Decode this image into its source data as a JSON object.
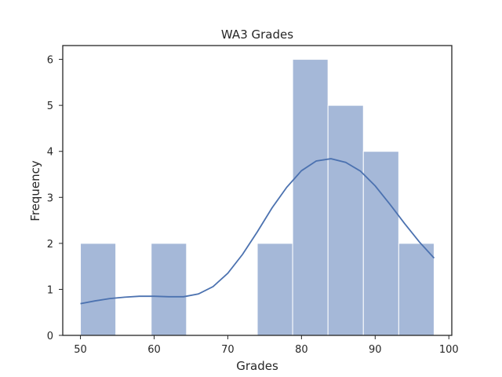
{
  "chart_data": {
    "type": "bar",
    "title": "WA3 Grades",
    "xlabel": "Grades",
    "ylabel": "Frequency",
    "xlim": [
      47.6,
      100.4
    ],
    "ylim": [
      0,
      6.3
    ],
    "xticks": [
      50,
      60,
      70,
      80,
      90,
      100
    ],
    "yticks": [
      0,
      1,
      2,
      3,
      4,
      5,
      6
    ],
    "grid": false,
    "bins": [
      {
        "x0": 50.0,
        "x1": 54.8,
        "count": 2
      },
      {
        "x0": 54.8,
        "x1": 59.6,
        "count": 0
      },
      {
        "x0": 59.6,
        "x1": 64.4,
        "count": 2
      },
      {
        "x0": 64.4,
        "x1": 69.2,
        "count": 0
      },
      {
        "x0": 69.2,
        "x1": 74.0,
        "count": 0
      },
      {
        "x0": 74.0,
        "x1": 78.8,
        "count": 2
      },
      {
        "x0": 78.8,
        "x1": 83.6,
        "count": 6
      },
      {
        "x0": 83.6,
        "x1": 88.4,
        "count": 5
      },
      {
        "x0": 88.4,
        "x1": 93.2,
        "count": 4
      },
      {
        "x0": 93.2,
        "x1": 98.0,
        "count": 2
      }
    ],
    "kde": {
      "x": [
        50,
        52,
        54,
        56,
        58,
        60,
        62,
        64,
        66,
        68,
        70,
        72,
        74,
        76,
        78,
        80,
        82,
        84,
        86,
        88,
        90,
        92,
        94,
        96,
        98
      ],
      "y": [
        0.69,
        0.75,
        0.8,
        0.83,
        0.85,
        0.85,
        0.84,
        0.84,
        0.9,
        1.06,
        1.35,
        1.76,
        2.25,
        2.77,
        3.22,
        3.58,
        3.79,
        3.84,
        3.76,
        3.57,
        3.25,
        2.85,
        2.43,
        2.03,
        1.68
      ]
    },
    "colors": {
      "bar_fill": "#a5b8d8",
      "bar_edge": "#ffffff",
      "kde_line": "#4c72b0",
      "axis": "#262626"
    }
  }
}
